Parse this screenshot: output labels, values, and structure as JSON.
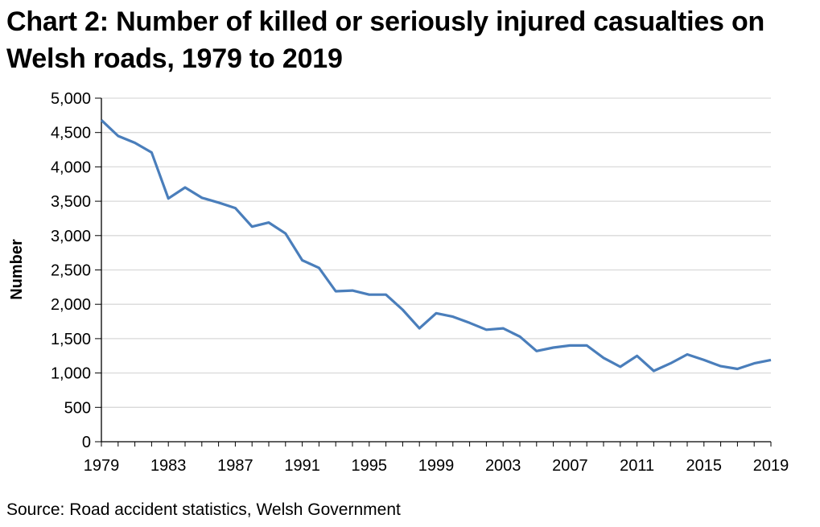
{
  "chart_title": "Chart 2: Number of killed or seriously injured casualties on Welsh roads, 1979 to 2019",
  "source": "Source: Road accident statistics, Welsh Government",
  "chart_data": {
    "type": "line",
    "title": "Chart 2: Number of killed or seriously injured casualties on Welsh roads, 1979 to 2019",
    "xlabel": "",
    "ylabel": "Number",
    "ylim": [
      0,
      5000
    ],
    "xlim": [
      1979,
      2019
    ],
    "yticks": [
      0,
      500,
      1000,
      1500,
      2000,
      2500,
      3000,
      3500,
      4000,
      4500,
      5000
    ],
    "ytick_labels": [
      "0",
      "500",
      "1,000",
      "1,500",
      "2,000",
      "2,500",
      "3,000",
      "3,500",
      "4,000",
      "4,500",
      "5,000"
    ],
    "xtick_labels": [
      "1979",
      "1983",
      "1987",
      "1991",
      "1995",
      "1999",
      "2003",
      "2007",
      "2011",
      "2015",
      "2019"
    ],
    "grid": "horizontal",
    "line_color": "#4a7ebb",
    "x": [
      1979,
      1980,
      1981,
      1982,
      1983,
      1984,
      1985,
      1986,
      1987,
      1988,
      1989,
      1990,
      1991,
      1992,
      1993,
      1994,
      1995,
      1996,
      1997,
      1998,
      1999,
      2000,
      2001,
      2002,
      2003,
      2004,
      2005,
      2006,
      2007,
      2008,
      2009,
      2010,
      2011,
      2012,
      2013,
      2014,
      2015,
      2016,
      2017,
      2018,
      2019
    ],
    "series": [
      {
        "values": [
          4680,
          4450,
          4350,
          4210,
          3540,
          3700,
          3550,
          3480,
          3400,
          3130,
          3190,
          3030,
          2640,
          2530,
          2190,
          2200,
          2140,
          2140,
          1920,
          1650,
          1870,
          1820,
          1730,
          1630,
          1650,
          1530,
          1320,
          1370,
          1400,
          1400,
          1220,
          1090,
          1250,
          1030,
          1140,
          1270,
          1190,
          1100,
          1060,
          1140,
          1190
        ]
      }
    ]
  }
}
